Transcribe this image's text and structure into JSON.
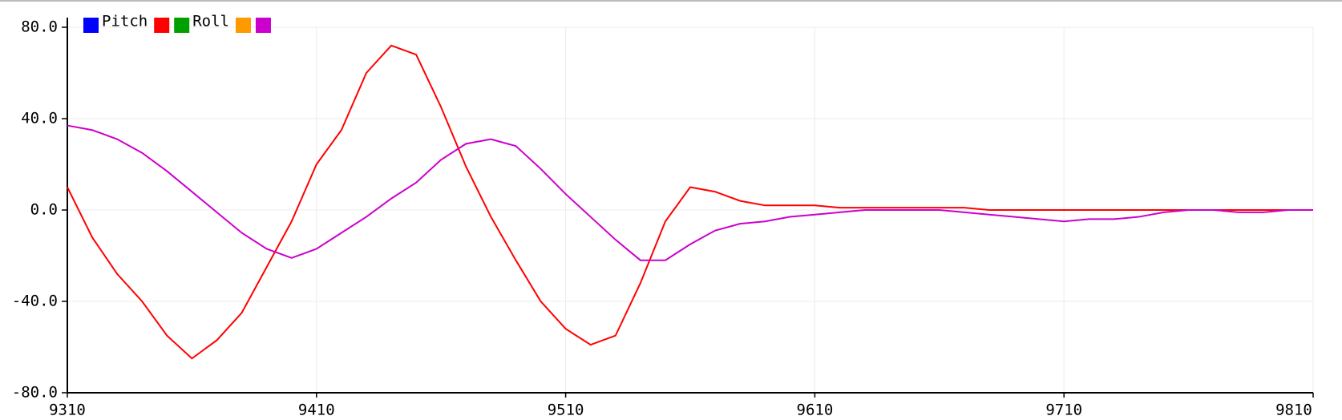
{
  "chart_data": {
    "type": "line",
    "x": [
      9310,
      9320,
      9330,
      9340,
      9350,
      9360,
      9370,
      9380,
      9390,
      9400,
      9410,
      9420,
      9430,
      9440,
      9450,
      9460,
      9470,
      9480,
      9490,
      9500,
      9510,
      9520,
      9530,
      9540,
      9550,
      9560,
      9570,
      9580,
      9590,
      9600,
      9610,
      9620,
      9630,
      9640,
      9650,
      9660,
      9670,
      9680,
      9690,
      9700,
      9710,
      9720,
      9730,
      9740,
      9750,
      9760,
      9770,
      9780,
      9790,
      9800,
      9810
    ],
    "series": [
      {
        "name": "Pitch",
        "color": "#0000ff"
      },
      {
        "name": null,
        "color": "#ff0000",
        "values": [
          10,
          -12,
          -28,
          -40,
          -55,
          -65,
          -57,
          -45,
          -25,
          -5,
          20,
          35,
          60,
          72,
          68,
          45,
          19,
          -3,
          -22,
          -40,
          -52,
          -59,
          -55,
          -32,
          -5,
          10,
          8,
          4,
          2,
          2,
          2,
          1,
          1,
          1,
          1,
          1,
          1,
          0,
          0,
          0,
          0,
          0,
          0,
          0,
          0,
          0,
          0,
          0,
          0,
          0,
          0
        ]
      },
      {
        "name": "Roll",
        "color": "#00a000"
      },
      {
        "name": null,
        "color": "#ff9900"
      },
      {
        "name": null,
        "color": "#cc00cc",
        "values": [
          37,
          35,
          31,
          25,
          17,
          8,
          -1,
          -10,
          -17,
          -21,
          -17,
          -10,
          -3,
          5,
          12,
          22,
          29,
          31,
          28,
          18,
          7,
          -3,
          -13,
          -22,
          -22,
          -15,
          -9,
          -6,
          -5,
          -3,
          -2,
          -1,
          0,
          0,
          0,
          0,
          -1,
          -2,
          -3,
          -4,
          -5,
          -4,
          -4,
          -3,
          -1,
          0,
          0,
          -1,
          -1,
          0,
          0
        ]
      }
    ],
    "xlim": [
      9310,
      9810
    ],
    "xticks": [
      9310,
      9410,
      9510,
      9610,
      9710,
      9810
    ],
    "ylim": [
      -80,
      80
    ],
    "yticks": [
      {
        "value": -80,
        "label": "-80.0"
      },
      {
        "value": -40,
        "label": "-40.0"
      },
      {
        "value": 0,
        "label": "0.0"
      },
      {
        "value": 40,
        "label": "40.0"
      },
      {
        "value": 80,
        "label": "80.0"
      }
    ],
    "grid": true
  }
}
